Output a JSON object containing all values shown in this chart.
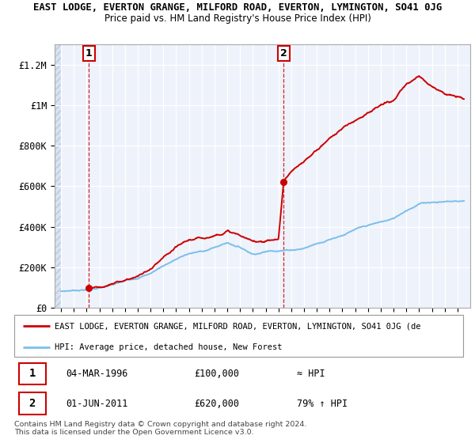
{
  "title": "EAST LODGE, EVERTON GRANGE, MILFORD ROAD, EVERTON, LYMINGTON, SO41 0JG",
  "subtitle": "Price paid vs. HM Land Registry's House Price Index (HPI)",
  "legend_label_red": "EAST LODGE, EVERTON GRANGE, MILFORD ROAD, EVERTON, LYMINGTON, SO41 0JG (de",
  "legend_label_blue": "HPI: Average price, detached house, New Forest",
  "footnote": "Contains HM Land Registry data © Crown copyright and database right 2024.\nThis data is licensed under the Open Government Licence v3.0.",
  "transactions": [
    {
      "label": "1",
      "date_x": 1996.17,
      "price": 100000,
      "note": "≈ HPI"
    },
    {
      "label": "2",
      "date_x": 2011.42,
      "price": 620000,
      "note": "79% ↑ HPI"
    }
  ],
  "transaction_info": [
    {
      "num": "1",
      "date": "04-MAR-1996",
      "price": "£100,000",
      "note": "≈ HPI"
    },
    {
      "num": "2",
      "date": "01-JUN-2011",
      "price": "£620,000",
      "note": "79% ↑ HPI"
    }
  ],
  "hpi_color": "#7bbfea",
  "price_color": "#cc0000",
  "background_plot": "#eef2fb",
  "ylim": [
    0,
    1300000
  ],
  "xlim_start": 1993.5,
  "xlim_end": 2026.0,
  "yticks": [
    0,
    200000,
    400000,
    600000,
    800000,
    1000000,
    1200000
  ],
  "ytick_labels": [
    "£0",
    "£200K",
    "£400K",
    "£600K",
    "£800K",
    "£1M",
    "£1.2M"
  ],
  "hpi_keypoints": [
    [
      1994.0,
      82000
    ],
    [
      1995.0,
      88000
    ],
    [
      1996.0,
      95000
    ],
    [
      1997.0,
      103000
    ],
    [
      1998.0,
      115000
    ],
    [
      1999.0,
      132000
    ],
    [
      2000.0,
      152000
    ],
    [
      2001.0,
      175000
    ],
    [
      2002.0,
      215000
    ],
    [
      2003.0,
      248000
    ],
    [
      2004.0,
      275000
    ],
    [
      2005.0,
      285000
    ],
    [
      2006.0,
      305000
    ],
    [
      2007.0,
      330000
    ],
    [
      2008.0,
      310000
    ],
    [
      2009.0,
      280000
    ],
    [
      2010.0,
      295000
    ],
    [
      2011.0,
      305000
    ],
    [
      2012.0,
      310000
    ],
    [
      2013.0,
      320000
    ],
    [
      2014.0,
      345000
    ],
    [
      2015.0,
      370000
    ],
    [
      2016.0,
      395000
    ],
    [
      2017.0,
      420000
    ],
    [
      2018.0,
      435000
    ],
    [
      2019.0,
      450000
    ],
    [
      2020.0,
      465000
    ],
    [
      2021.0,
      510000
    ],
    [
      2022.0,
      545000
    ],
    [
      2023.0,
      555000
    ],
    [
      2024.0,
      560000
    ],
    [
      2025.5,
      565000
    ]
  ],
  "prop_keypoints": [
    [
      1996.0,
      95000
    ],
    [
      1996.17,
      100000
    ],
    [
      1997.0,
      108000
    ],
    [
      1998.0,
      120000
    ],
    [
      1999.0,
      140000
    ],
    [
      2000.0,
      162000
    ],
    [
      2001.0,
      192000
    ],
    [
      2002.0,
      240000
    ],
    [
      2003.0,
      282000
    ],
    [
      2004.0,
      315000
    ],
    [
      2005.0,
      320000
    ],
    [
      2006.0,
      340000
    ],
    [
      2007.0,
      370000
    ],
    [
      2008.0,
      345000
    ],
    [
      2009.0,
      310000
    ],
    [
      2010.0,
      320000
    ],
    [
      2011.0,
      330000
    ],
    [
      2011.42,
      620000
    ],
    [
      2012.0,
      660000
    ],
    [
      2013.0,
      700000
    ],
    [
      2014.0,
      760000
    ],
    [
      2015.0,
      820000
    ],
    [
      2016.0,
      870000
    ],
    [
      2017.0,
      910000
    ],
    [
      2018.0,
      960000
    ],
    [
      2019.0,
      990000
    ],
    [
      2020.0,
      1010000
    ],
    [
      2021.0,
      1080000
    ],
    [
      2022.0,
      1120000
    ],
    [
      2023.0,
      1080000
    ],
    [
      2024.0,
      1050000
    ],
    [
      2025.5,
      1020000
    ]
  ]
}
